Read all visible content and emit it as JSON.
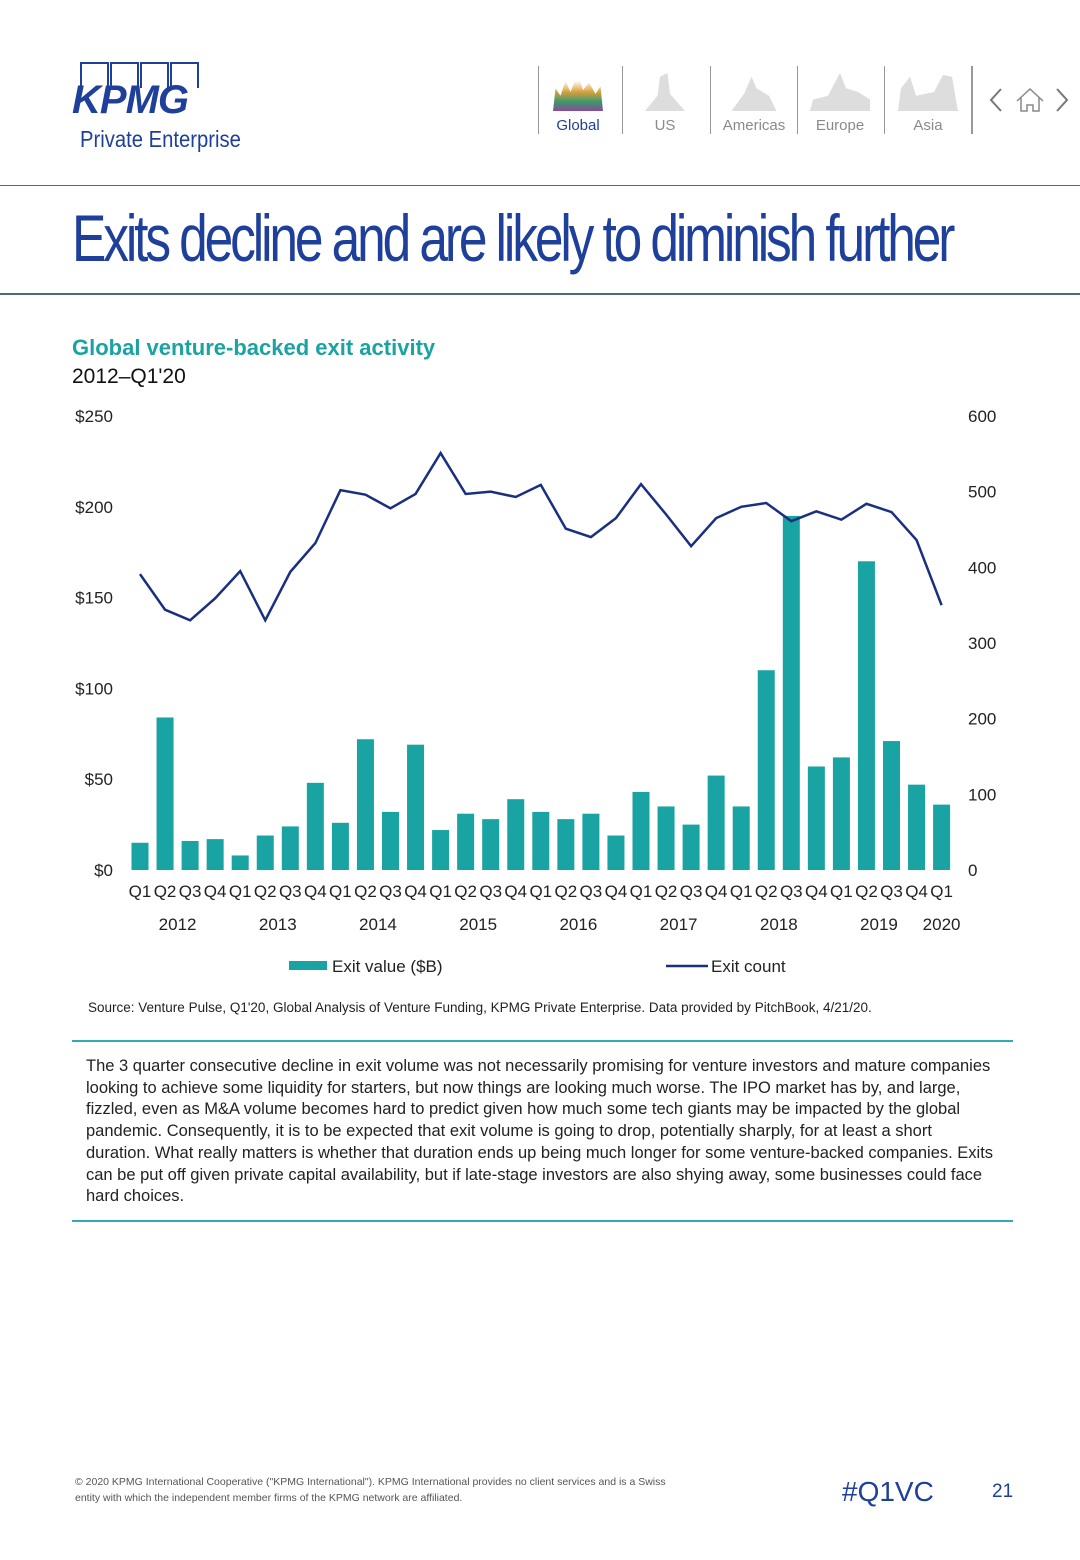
{
  "header": {
    "logo": "KPMG",
    "logo_sub": "Private Enterprise",
    "nav": [
      {
        "label": "Global",
        "active": true
      },
      {
        "label": "US"
      },
      {
        "label": "Americas"
      },
      {
        "label": "Europe"
      },
      {
        "label": "Asia"
      }
    ]
  },
  "title": "Exits decline and are likely to diminish further",
  "chart_data": {
    "type": "bar+line",
    "title": "Global venture-backed exit activity",
    "subtitle": "2012–Q1'20",
    "quarters": [
      "Q1",
      "Q2",
      "Q3",
      "Q4",
      "Q1",
      "Q2",
      "Q3",
      "Q4",
      "Q1",
      "Q2",
      "Q3",
      "Q4",
      "Q1",
      "Q2",
      "Q3",
      "Q4",
      "Q1",
      "Q2",
      "Q3",
      "Q4",
      "Q1",
      "Q2",
      "Q3",
      "Q4",
      "Q1",
      "Q2",
      "Q3",
      "Q4",
      "Q1",
      "Q2",
      "Q3",
      "Q4",
      "Q1"
    ],
    "years": [
      {
        "label": "2012",
        "at": 1.5
      },
      {
        "label": "2013",
        "at": 5.5
      },
      {
        "label": "2014",
        "at": 9.5
      },
      {
        "label": "2015",
        "at": 13.5
      },
      {
        "label": "2016",
        "at": 17.5
      },
      {
        "label": "2017",
        "at": 21.5
      },
      {
        "label": "2018",
        "at": 25.5
      },
      {
        "label": "2019",
        "at": 29.5
      },
      {
        "label": "2020",
        "at": 32
      }
    ],
    "series": [
      {
        "name": "Exit value ($B)",
        "type": "bar",
        "axis": "left",
        "color": "#1aa3a3",
        "values": [
          15,
          84,
          16,
          17,
          8,
          19,
          24,
          48,
          26,
          72,
          32,
          69,
          22,
          31,
          28,
          39,
          32,
          28,
          31,
          19,
          43,
          35,
          25,
          52,
          35,
          110,
          195,
          57,
          62,
          170,
          71,
          47,
          36
        ]
      },
      {
        "name": "Exit count",
        "type": "line",
        "axis": "right",
        "color": "#1a2f80",
        "values": [
          391,
          344,
          330,
          359,
          395,
          330,
          394,
          432,
          502,
          496,
          478,
          497,
          551,
          497,
          500,
          493,
          509,
          451,
          440,
          465,
          510,
          470,
          428,
          465,
          480,
          485,
          461,
          474,
          463,
          484,
          473,
          436,
          350
        ]
      }
    ],
    "left_axis": {
      "range": [
        0,
        250
      ],
      "ticks": [
        "$0",
        "$50",
        "$100",
        "$150",
        "$200",
        "$250"
      ]
    },
    "right_axis": {
      "range": [
        0,
        600
      ],
      "ticks": [
        "0",
        "100",
        "200",
        "300",
        "400",
        "500",
        "600"
      ]
    },
    "legend_position": "bottom",
    "grid": false
  },
  "source": "Source: Venture Pulse, Q1'20, Global Analysis of Venture Funding, KPMG Private Enterprise. Data provided by PitchBook, 4/21/20.",
  "body": "The 3 quarter consecutive decline in exit volume was not necessarily promising for venture investors and mature companies looking to achieve some liquidity for starters, but now things are looking much worse. The IPO market has by, and large, fizzled, even as M&A volume becomes hard to predict given how much some tech giants may be impacted by the global pandemic. Consequently, it is to be expected that exit volume is going to drop, potentially sharply, for at least a short duration. What really matters is whether that duration ends up being much longer for some venture-backed companies. Exits can be put off given private capital availability, but if late-stage investors are also shying away, some businesses could face hard choices.",
  "footer": {
    "copyright": "© 2020 KPMG International Cooperative (\"KPMG International\"). KPMG International provides no client services and is a Swiss entity with which the independent member firms of the KPMG network are affiliated.",
    "hashtag": "#Q1VC",
    "page": "21"
  }
}
